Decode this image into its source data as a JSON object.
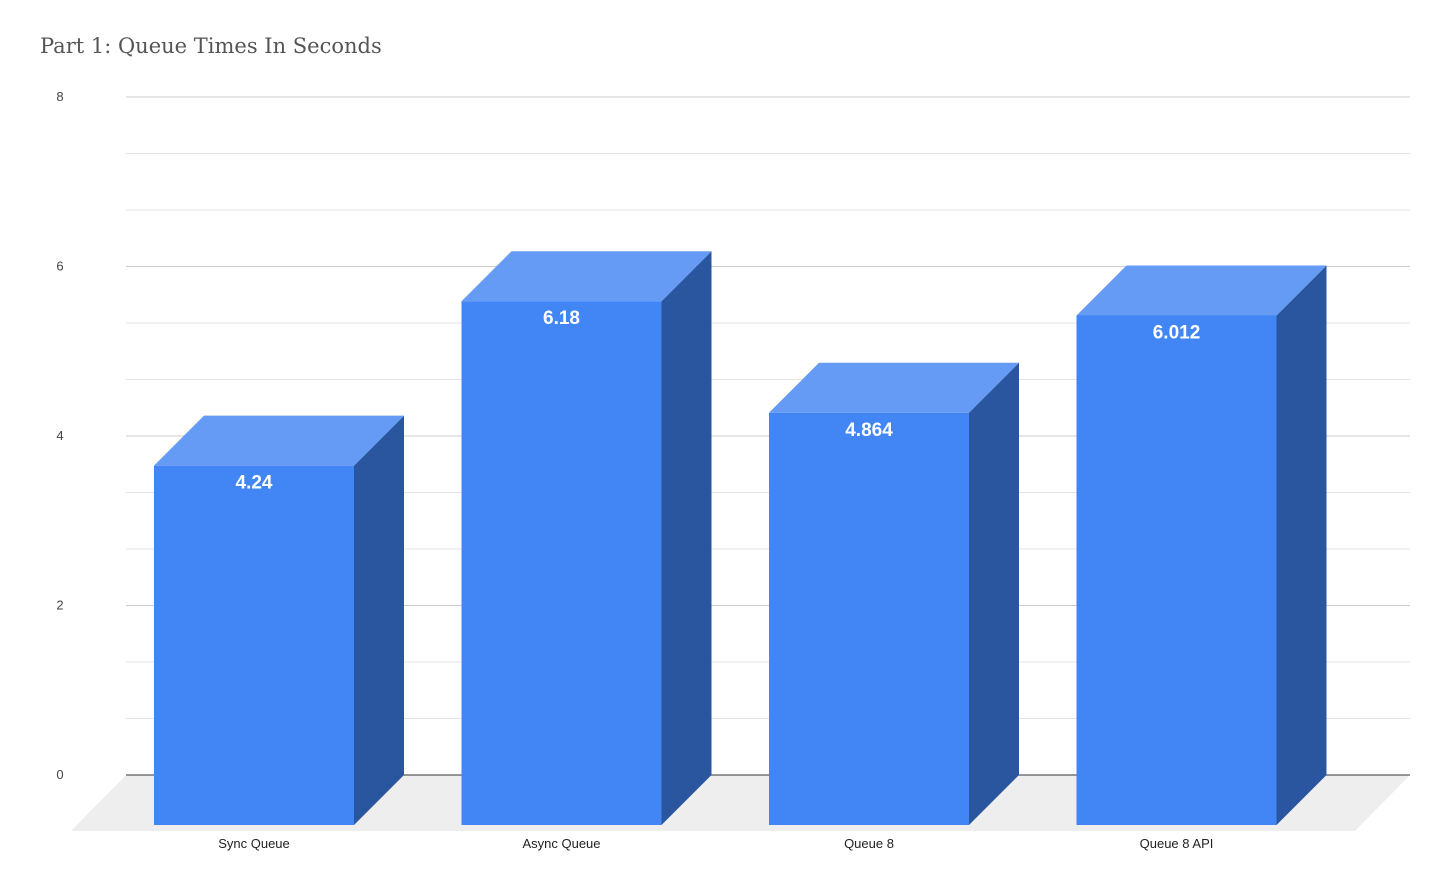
{
  "chart_data": {
    "type": "bar",
    "title": "Part 1: Queue Times In Seconds",
    "categories": [
      "Sync Queue",
      "Async Queue",
      "Queue 8",
      "Queue 8 API"
    ],
    "values": [
      4.24,
      6.18,
      4.864,
      6.012
    ],
    "value_labels": [
      "4.24",
      "6.18",
      "4.864",
      "6.012"
    ],
    "y_ticks": [
      0,
      2,
      4,
      6,
      8
    ],
    "ylim": [
      0,
      8
    ],
    "xlabel": "",
    "ylabel": "",
    "grid": true,
    "legend": "none",
    "style": "3d",
    "colors": {
      "front": "#4285f4",
      "top": "#659af5",
      "side": "#2a56a0",
      "floor": "#eeeeee",
      "grid_major": "#cccccc",
      "grid_minor": "#e4e4e4"
    }
  }
}
